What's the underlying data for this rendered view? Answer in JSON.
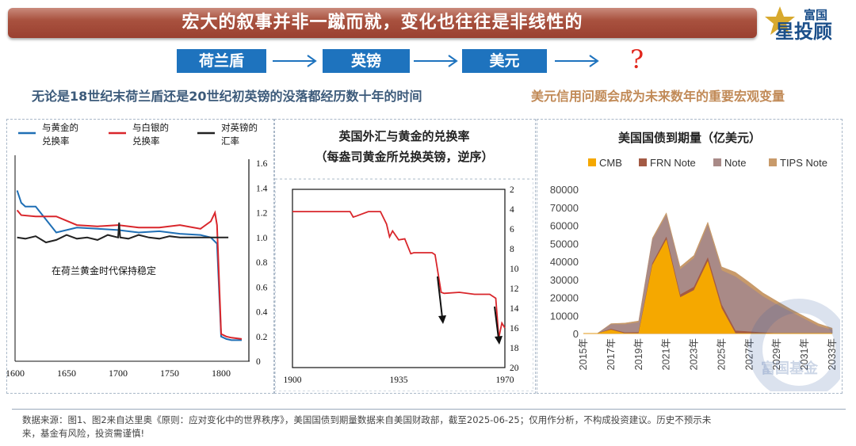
{
  "header": {
    "title": "宏大的叙事并非一蹴而就，变化也往往是非线性的",
    "logo_top": "富国",
    "logo_main": "星投顾"
  },
  "flow": {
    "items": [
      "荷兰盾",
      "英镑",
      "美元"
    ],
    "question": "?"
  },
  "subtitles": {
    "left": "无论是18世纪末荷兰盾还是20世纪初英镑的没落都经历数十年的时间",
    "right": "美元信用问题会成为未来数年的重要宏观变量"
  },
  "chart_data": [
    {
      "type": "line",
      "title": "",
      "series": [
        {
          "name": "与黄金的兑换率",
          "color": "#1f6fb5",
          "x": [
            1602,
            1606,
            1610,
            1620,
            1640,
            1660,
            1680,
            1700,
            1720,
            1740,
            1760,
            1780,
            1790,
            1796,
            1800,
            1805,
            1810,
            1820
          ],
          "values": [
            1.38,
            1.28,
            1.25,
            1.25,
            1.04,
            1.08,
            1.07,
            1.06,
            1.04,
            1.05,
            1.03,
            1.02,
            1.0,
            0.95,
            0.2,
            0.18,
            0.17,
            0.17
          ]
        },
        {
          "name": "与白银的兑换率",
          "color": "#d9262b",
          "x": [
            1602,
            1606,
            1620,
            1640,
            1660,
            1680,
            1700,
            1720,
            1740,
            1760,
            1780,
            1790,
            1794,
            1796,
            1800,
            1805,
            1810,
            1820
          ],
          "values": [
            1.22,
            1.18,
            1.17,
            1.17,
            1.1,
            1.09,
            1.1,
            1.08,
            1.08,
            1.1,
            1.07,
            1.13,
            1.2,
            1.1,
            0.22,
            0.2,
            0.19,
            0.18
          ]
        },
        {
          "name": "对英镑的汇率",
          "color": "#222222",
          "x": [
            1602,
            1610,
            1620,
            1630,
            1640,
            1650,
            1660,
            1670,
            1680,
            1690,
            1700,
            1701,
            1702,
            1710,
            1720,
            1730,
            1740,
            1750,
            1760,
            1770,
            1780,
            1790,
            1800,
            1807
          ],
          "values": [
            1.0,
            0.99,
            1.01,
            0.96,
            0.98,
            1.02,
            0.99,
            1.0,
            0.98,
            1.02,
            1.0,
            1.12,
            1.0,
            0.99,
            1.02,
            1.0,
            0.99,
            1.01,
            1.0,
            1.0,
            1.0,
            1.0,
            1.0,
            1.0
          ]
        }
      ],
      "x_ticks": [
        "1600",
        "1650",
        "1700",
        "1750",
        "1800"
      ],
      "y_ticks": [
        "0",
        "0.2",
        "0.4",
        "0.6",
        "0.8",
        "1.0",
        "1.2",
        "1.4",
        "1.6"
      ],
      "xlim": [
        1600,
        1820
      ],
      "ylim": [
        0,
        1.6
      ],
      "annotation": "在荷兰黄金时代保持稳定"
    },
    {
      "type": "line",
      "title": "英国外汇与黄金的兑换率",
      "subtitle": "（每盎司黄金所兑换英镑，逆序）",
      "series": [
        {
          "name": "",
          "color": "#d9262b",
          "x": [
            1900,
            1910,
            1919,
            1920,
            1921,
            1925,
            1929,
            1931,
            1932,
            1933,
            1935,
            1937,
            1939,
            1940,
            1944,
            1946,
            1947,
            1949,
            1950,
            1955,
            1960,
            1965,
            1967,
            1968,
            1969,
            1970
          ],
          "values": [
            4.25,
            4.25,
            4.25,
            4.8,
            4.7,
            4.25,
            4.25,
            5.5,
            6.8,
            6.2,
            7.1,
            7.0,
            8.5,
            8.4,
            8.4,
            8.4,
            8.6,
            12.4,
            12.5,
            12.4,
            12.6,
            12.6,
            13.0,
            17.0,
            15.5,
            16.0
          ]
        }
      ],
      "x_ticks": [
        "1900",
        "1935",
        "1970"
      ],
      "y_ticks": [
        "2",
        "4",
        "6",
        "8",
        "10",
        "12",
        "14",
        "16",
        "18",
        "20"
      ],
      "xlim": [
        1900,
        1970
      ],
      "ylim": [
        2,
        20
      ],
      "y_reversed": true
    },
    {
      "type": "area",
      "title": "美国国债到期量（亿美元）",
      "legend": [
        "CMB",
        "FRN Note",
        "Note",
        "TIPS Note"
      ],
      "categories": [
        "2015年",
        "2016年",
        "2017年",
        "2018年",
        "2019年",
        "2020年",
        "2021年",
        "2022年",
        "2023年",
        "2024年",
        "2025年",
        "2026年",
        "2027年",
        "2028年",
        "2029年",
        "2030年",
        "2031年",
        "2032年",
        "2033年"
      ],
      "series": [
        {
          "name": "CMB",
          "color": "#f5a800",
          "values": [
            0,
            0,
            2000,
            0,
            0,
            38000,
            52000,
            20000,
            24000,
            40000,
            14000,
            0,
            0,
            0,
            0,
            0,
            0,
            0,
            0
          ]
        },
        {
          "name": "FRN Note",
          "color": "#a35a44",
          "values": [
            0,
            0,
            500,
            500,
            600,
            1000,
            1500,
            1500,
            1800,
            2000,
            2000,
            1500,
            1000,
            500,
            0,
            0,
            0,
            0,
            0
          ]
        },
        {
          "name": "Note",
          "color": "#a98a87",
          "values": [
            0,
            0,
            2500,
            4500,
            5500,
            13000,
            12000,
            14000,
            16000,
            18000,
            19000,
            30000,
            25000,
            20000,
            16000,
            12000,
            8000,
            4000,
            2000
          ]
        },
        {
          "name": "TIPS Note",
          "color": "#c89a6a",
          "values": [
            0,
            0,
            500,
            800,
            900,
            1000,
            1500,
            1500,
            1600,
            1800,
            2000,
            2500,
            2500,
            2000,
            2000,
            1500,
            1500,
            1500,
            1000
          ]
        }
      ],
      "y_ticks": [
        "0",
        "10000",
        "20000",
        "30000",
        "40000",
        "50000",
        "60000",
        "70000",
        "80000"
      ],
      "ylim": [
        0,
        80000
      ]
    }
  ],
  "watermark": "富国基金",
  "footer": {
    "line1": "数据来源：图1、图2来自达里奥《原则：应对变化中的世界秩序》，美国国债到期量数据来自美国财政部，截至2025-06-25；仅用作分析，不构成投资建议。历史不预示未",
    "line2": "来，基金有风险，投资需谨慎!"
  }
}
